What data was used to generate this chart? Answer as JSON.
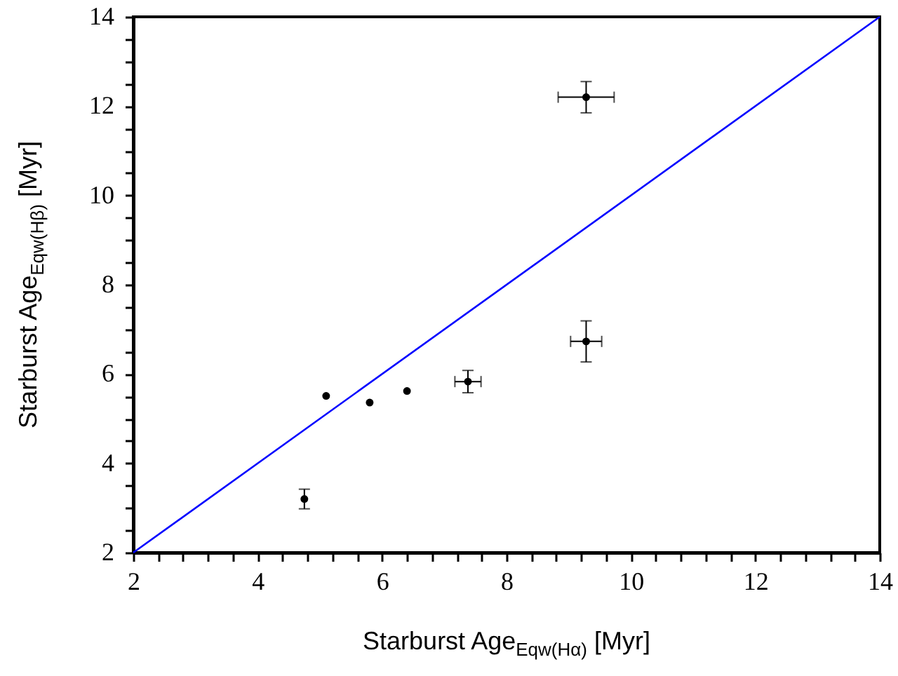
{
  "chart_data": {
    "type": "scatter",
    "xlabel": "Starburst Age$_{Eqw(Hα)}$ [Myr]",
    "ylabel": "Starburst Age$_{Eqw(Hβ)}$ [Myr]",
    "xlim": [
      2,
      14
    ],
    "ylim": [
      2,
      14
    ],
    "xticks": [
      2,
      {
        "value": 2.4,
        "label": null
      },
      {
        "value": 2.8,
        "label": null
      },
      {
        "value": 3.2,
        "label": null
      },
      {
        "value": 3.6,
        "label": null
      },
      4,
      {
        "value": 4.4,
        "label": null
      },
      {
        "value": 4.8,
        "label": null
      },
      {
        "value": 5.2,
        "label": null
      },
      {
        "value": 5.6,
        "label": null
      },
      6,
      {
        "value": 6.4,
        "label": null
      },
      {
        "value": 6.8,
        "label": null
      },
      {
        "value": 7.2,
        "label": null
      },
      {
        "value": 7.6,
        "label": null
      },
      8,
      {
        "value": 8.4,
        "label": null
      },
      {
        "value": 8.8,
        "label": null
      },
      {
        "value": 9.2,
        "label": null
      },
      {
        "value": 9.6,
        "label": null
      },
      10,
      {
        "value": 10.4,
        "label": null
      },
      {
        "value": 10.8,
        "label": null
      },
      {
        "value": 11.2,
        "label": null
      },
      {
        "value": 11.6,
        "label": null
      },
      12,
      {
        "value": 12.4,
        "label": null
      },
      {
        "value": 12.8,
        "label": null
      },
      {
        "value": 13.2,
        "label": null
      },
      {
        "value": 13.6,
        "label": null
      },
      14
    ],
    "yticks": [
      2,
      {
        "value": 2.5,
        "label": null
      },
      {
        "value": 3,
        "label": null
      },
      {
        "value": 3.5,
        "label": null
      },
      4,
      {
        "value": 4.5,
        "label": null
      },
      {
        "value": 5,
        "label": null
      },
      {
        "value": 5.5,
        "label": null
      },
      6,
      {
        "value": 6.5,
        "label": null
      },
      {
        "value": 7,
        "label": null
      },
      {
        "value": 7.5,
        "label": null
      },
      8,
      {
        "value": 8.5,
        "label": null
      },
      {
        "value": 9,
        "label": null
      },
      {
        "value": 9.5,
        "label": null
      },
      10,
      {
        "value": 10.5,
        "label": null
      },
      {
        "value": 11,
        "label": null
      },
      {
        "value": 11.5,
        "label": null
      },
      12,
      {
        "value": 12.5,
        "label": null
      },
      {
        "value": 13,
        "label": null
      },
      {
        "value": 13.5,
        "label": null
      },
      14
    ],
    "grid": false,
    "series": [
      {
        "type": "line",
        "color": "#0000ff",
        "x": [
          2,
          14
        ],
        "values": [
          2,
          14
        ],
        "line_style": "solid"
      },
      {
        "type": "scatter",
        "color": "#000000",
        "marker": "circle",
        "x": [
          4.75,
          5.1,
          5.8,
          6.4,
          7.38,
          9.28,
          9.28
        ],
        "values": [
          3.2,
          5.51,
          5.36,
          5.62,
          5.83,
          6.73,
          12.2
        ],
        "errors": [
          0.22,
          null,
          null,
          null,
          0.25,
          0.46,
          0.35
        ],
        "xerrors": [
          null,
          null,
          null,
          null,
          0.21,
          0.25,
          0.45
        ]
      }
    ]
  }
}
